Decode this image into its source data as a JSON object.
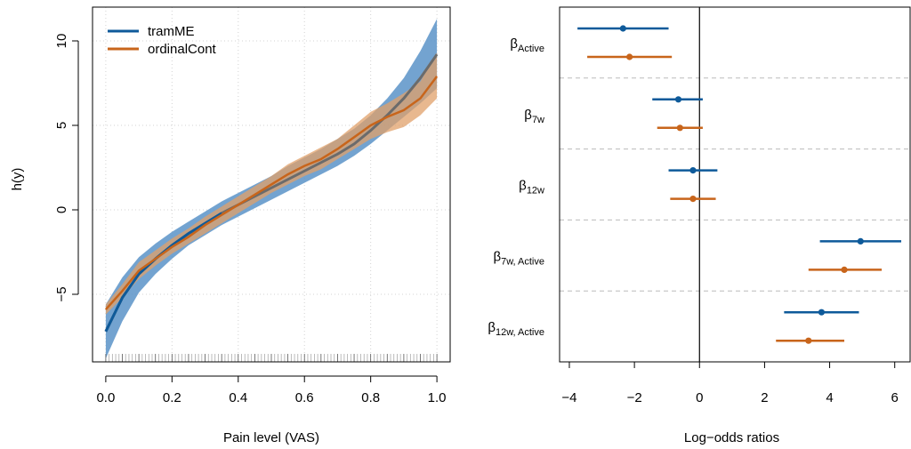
{
  "colors": {
    "tramME": "#0e5a9a",
    "ordinalCont": "#c8651b",
    "tramME_band": "#5a93c8",
    "ordinalCont_band": "#e0a06a",
    "overlap_band": "#9c8d74",
    "grid": "#d3d3d3",
    "separator": "#bbbbbb"
  },
  "chart_data": [
    {
      "type": "line",
      "xlabel": "Pain level (VAS)",
      "ylabel": "h(y)",
      "xlim": [
        0,
        1
      ],
      "ylim": [
        -9,
        12
      ],
      "x_ticks": [
        "0.0",
        "0.2",
        "0.4",
        "0.6",
        "0.8",
        "1.0"
      ],
      "x_tick_values": [
        0,
        0.2,
        0.4,
        0.6,
        0.8,
        1.0
      ],
      "y_ticks": [
        "−5",
        "0",
        "5",
        "10"
      ],
      "y_tick_values": [
        -5,
        0,
        5,
        10
      ],
      "grid": true,
      "legend_position": "top-left",
      "rug": true,
      "x": [
        0.0,
        0.05,
        0.1,
        0.15,
        0.2,
        0.25,
        0.3,
        0.35,
        0.4,
        0.45,
        0.5,
        0.55,
        0.6,
        0.65,
        0.7,
        0.75,
        0.8,
        0.85,
        0.9,
        0.95,
        1.0
      ],
      "series": [
        {
          "name": "tramME",
          "values": [
            -7.2,
            -5.2,
            -3.8,
            -2.9,
            -2.1,
            -1.4,
            -0.8,
            -0.2,
            0.3,
            0.8,
            1.3,
            1.8,
            2.3,
            2.8,
            3.3,
            3.9,
            4.7,
            5.6,
            6.6,
            7.8,
            9.2
          ],
          "lower": [
            -8.8,
            -6.6,
            -4.9,
            -3.8,
            -2.9,
            -2.1,
            -1.5,
            -0.9,
            -0.4,
            0.1,
            0.6,
            1.1,
            1.6,
            2.1,
            2.6,
            3.2,
            3.9,
            4.7,
            5.5,
            6.3,
            7.2
          ],
          "upper": [
            -5.6,
            -4.0,
            -2.8,
            -2.0,
            -1.3,
            -0.7,
            -0.1,
            0.5,
            1.0,
            1.5,
            2.0,
            2.6,
            3.1,
            3.6,
            4.2,
            4.8,
            5.6,
            6.6,
            7.8,
            9.4,
            11.3
          ]
        },
        {
          "name": "ordinalCont",
          "values": [
            -5.9,
            -4.8,
            -3.6,
            -2.9,
            -2.2,
            -1.6,
            -0.9,
            -0.3,
            0.3,
            0.9,
            1.5,
            2.1,
            2.6,
            3.0,
            3.6,
            4.3,
            5.0,
            5.5,
            5.9,
            6.6,
            7.9
          ],
          "lower": [
            -6.2,
            -5.2,
            -4.1,
            -3.3,
            -2.6,
            -2.0,
            -1.4,
            -0.8,
            -0.2,
            0.4,
            1.0,
            1.5,
            2.0,
            2.4,
            3.0,
            3.6,
            4.2,
            4.6,
            4.9,
            5.6,
            6.6
          ],
          "upper": [
            -5.6,
            -4.4,
            -3.1,
            -2.4,
            -1.7,
            -1.1,
            -0.4,
            0.2,
            0.8,
            1.4,
            2.0,
            2.7,
            3.2,
            3.7,
            4.2,
            5.0,
            5.8,
            6.3,
            6.9,
            7.6,
            9.3
          ]
        }
      ]
    },
    {
      "type": "scatter",
      "xlabel": "Log−odds ratios",
      "xlim": [
        -4.3,
        6.5
      ],
      "x_ticks": [
        "−4",
        "−2",
        "0",
        "2",
        "4",
        "6"
      ],
      "x_tick_values": [
        -4,
        -2,
        0,
        2,
        4,
        6
      ],
      "reference_line_x": 0,
      "parameters": [
        {
          "base": "β",
          "sub": "Active"
        },
        {
          "base": "β",
          "sub": "7w"
        },
        {
          "base": "β",
          "sub": "12w"
        },
        {
          "base": "β",
          "sub": "7w, Active"
        },
        {
          "base": "β",
          "sub": "12w, Active"
        }
      ],
      "series": [
        {
          "name": "tramME",
          "estimate": [
            -2.35,
            -0.65,
            -0.2,
            4.95,
            3.75
          ],
          "lower": [
            -3.75,
            -1.45,
            -0.95,
            3.7,
            2.6
          ],
          "upper": [
            -0.95,
            0.1,
            0.55,
            6.2,
            4.9
          ]
        },
        {
          "name": "ordinalCont",
          "estimate": [
            -2.15,
            -0.6,
            -0.2,
            4.45,
            3.35
          ],
          "lower": [
            -3.45,
            -1.3,
            -0.9,
            3.35,
            2.35
          ],
          "upper": [
            -0.85,
            0.1,
            0.5,
            5.6,
            4.45
          ]
        }
      ]
    }
  ]
}
